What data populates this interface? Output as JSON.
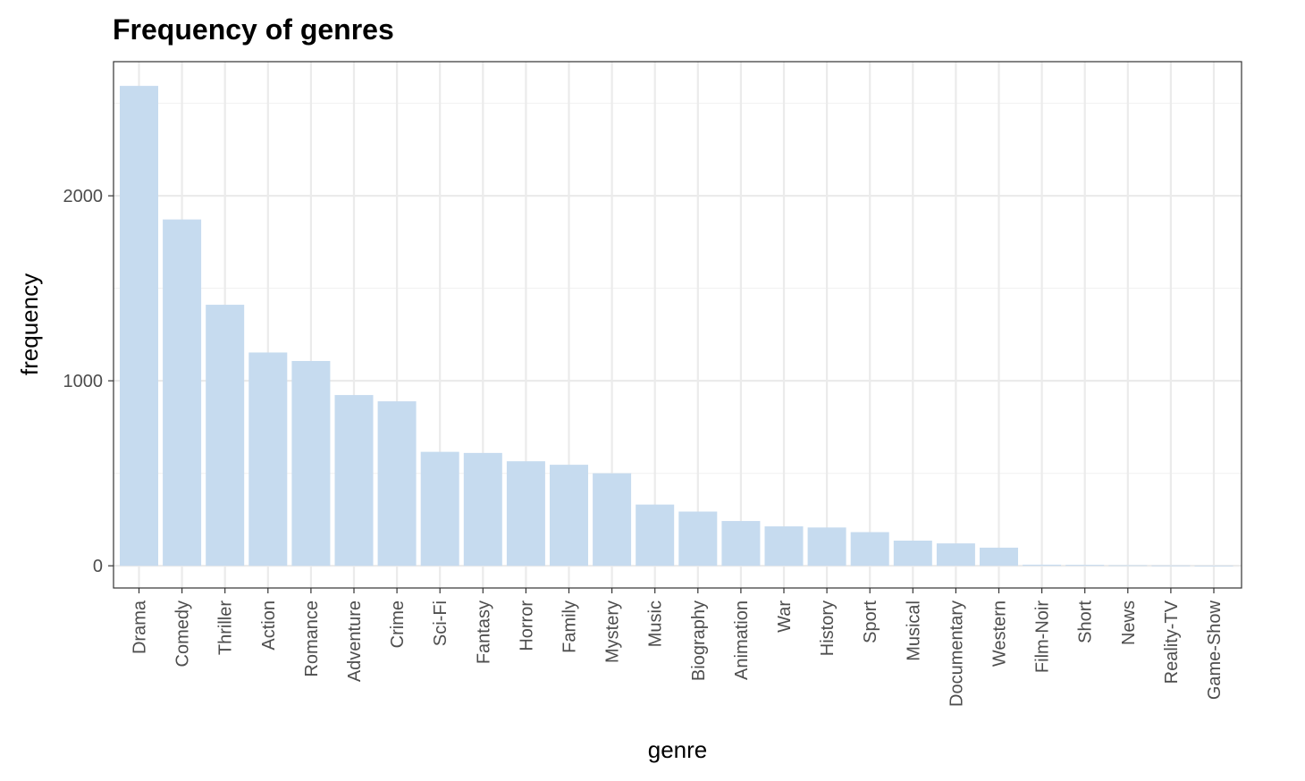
{
  "chart_data": {
    "type": "bar",
    "title": "Frequency of genres",
    "xlabel": "genre",
    "ylabel": "frequency",
    "categories": [
      "Drama",
      "Comedy",
      "Thriller",
      "Action",
      "Romance",
      "Adventure",
      "Crime",
      "Sci-Fi",
      "Fantasy",
      "Horror",
      "Family",
      "Mystery",
      "Music",
      "Biography",
      "Animation",
      "War",
      "History",
      "Sport",
      "Musical",
      "Documentary",
      "Western",
      "Film-Noir",
      "Short",
      "News",
      "Reality-TV",
      "Game-Show"
    ],
    "values": [
      2594,
      1872,
      1411,
      1153,
      1107,
      923,
      889,
      616,
      610,
      565,
      546,
      500,
      331,
      293,
      242,
      213,
      207,
      182,
      136,
      121,
      98,
      6,
      5,
      3,
      2,
      1
    ],
    "yticks": [
      0,
      1000,
      2000
    ],
    "ytick_labels": [
      "0",
      "1000",
      "2000"
    ],
    "ylim": [
      -120,
      2725
    ],
    "grid": true,
    "legend": "none",
    "bar_color": "#c6dbef"
  }
}
